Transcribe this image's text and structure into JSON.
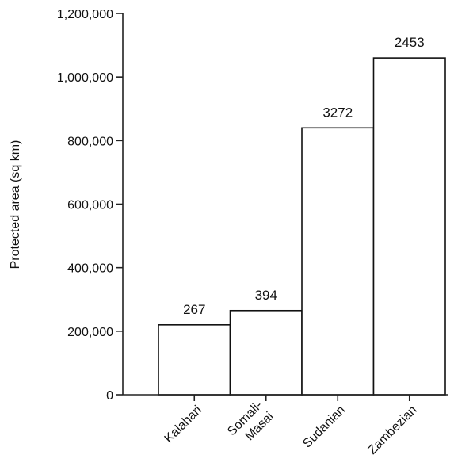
{
  "chart_data": {
    "type": "bar",
    "ylabel": "Protected area (sq km)",
    "ylim": [
      0,
      1200000
    ],
    "yticks": [
      0,
      200000,
      400000,
      600000,
      800000,
      1000000,
      1200000
    ],
    "ytick_labels": [
      "0",
      "200,000",
      "400,000",
      "600,000",
      "800,000",
      "1,000,000",
      "1,200,000"
    ],
    "categories": [
      "Kalahari",
      "Somali-\nMasai",
      "Sudanian",
      "Zambezian"
    ],
    "values": [
      220000,
      265000,
      840000,
      1060000
    ],
    "data_labels": [
      "267",
      "394",
      "3272",
      "2453"
    ],
    "grid": false,
    "legend": "none"
  }
}
